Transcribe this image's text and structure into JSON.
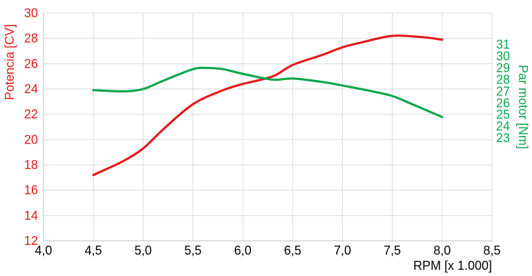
{
  "chart_data": {
    "type": "line",
    "title": "",
    "xlabel": "RPM [x 1.000]",
    "ylabel_left": "Potencia [CV]",
    "ylabel_right": "Par motor [Nm]",
    "xlim": [
      4.0,
      8.5
    ],
    "x_ticks": [
      4.0,
      4.5,
      5.0,
      5.5,
      6.0,
      6.5,
      7.0,
      7.5,
      8.0,
      8.5
    ],
    "x_tick_labels": [
      "4,0",
      "4,5",
      "5,0",
      "5,5",
      "6,0",
      "6,5",
      "7,0",
      "7,5",
      "8,0",
      "8,5"
    ],
    "ylim_left": [
      12,
      30
    ],
    "y_left_ticks": [
      12,
      14,
      16,
      18,
      20,
      22,
      24,
      26,
      28,
      30
    ],
    "y_left_tick_labels": [
      "12",
      "14",
      "16",
      "18",
      "20",
      "22",
      "24",
      "26",
      "28",
      "30"
    ],
    "ylim_right": [
      14.2,
      33.7
    ],
    "y_right_ticks": [
      23,
      24,
      25,
      26,
      27,
      28,
      29,
      30,
      31
    ],
    "y_right_tick_labels": [
      "23",
      "24",
      "25",
      "26",
      "27",
      "28",
      "29",
      "30",
      "31"
    ],
    "grid": true,
    "series": [
      {
        "axis": "left",
        "color": "#e4171b",
        "x": [
          4.5,
          4.8,
          5.0,
          5.2,
          5.5,
          5.8,
          6.0,
          6.3,
          6.5,
          6.8,
          7.0,
          7.2,
          7.5,
          7.8,
          8.0
        ],
        "values": [
          17.2,
          18.3,
          19.3,
          20.8,
          22.8,
          23.9,
          24.4,
          25.0,
          25.9,
          26.7,
          27.3,
          27.7,
          28.2,
          28.1,
          27.9
        ]
      },
      {
        "axis": "right",
        "color": "#0aa64b",
        "x": [
          4.5,
          4.8,
          5.0,
          5.2,
          5.5,
          5.65,
          5.8,
          6.0,
          6.3,
          6.5,
          6.8,
          7.0,
          7.3,
          7.5,
          7.7,
          8.0
        ],
        "values": [
          27.1,
          27.0,
          27.2,
          27.9,
          28.9,
          29.0,
          28.9,
          28.5,
          28.0,
          28.1,
          27.8,
          27.5,
          27.0,
          26.6,
          25.9,
          24.8
        ]
      }
    ]
  }
}
